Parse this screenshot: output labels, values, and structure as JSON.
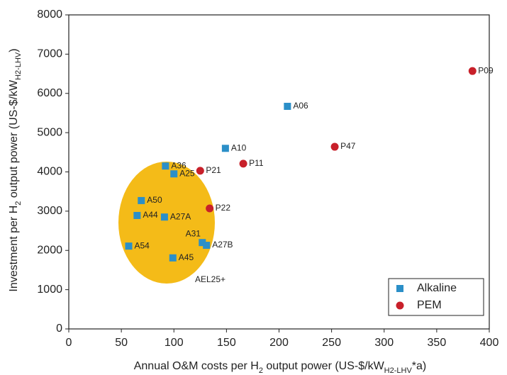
{
  "chart_data": {
    "type": "scatter",
    "xlabel": [
      "Annual O&M costs per H",
      "2",
      " output power (US-$/kW",
      "H2-LHV",
      "*a)"
    ],
    "ylabel": [
      "Investment per H",
      "2",
      " output power (US-$/kW",
      "H2-LHV",
      ")"
    ],
    "xlim": [
      0,
      400
    ],
    "xticks": [
      0,
      50,
      100,
      150,
      200,
      250,
      300,
      350,
      400
    ],
    "ylim": [
      0,
      8000
    ],
    "yticks": [
      0,
      1000,
      2000,
      3000,
      4000,
      5000,
      6000,
      7000,
      8000
    ],
    "legend": "lower right",
    "annotation": "AEL25+",
    "series": [
      {
        "name": "Alkaline",
        "color": "#2b8fc8",
        "marker": "square",
        "labels": [
          "A06",
          "A10",
          "A36",
          "A25",
          "A50",
          "A44",
          "A27A",
          "A31",
          "A27B",
          "A54",
          "A45"
        ],
        "x": [
          208,
          149,
          92,
          100,
          69,
          65,
          91,
          127,
          131,
          57,
          99
        ],
        "y": [
          5670,
          4600,
          4150,
          3950,
          3270,
          2890,
          2850,
          2200,
          2130,
          2110,
          1810
        ]
      },
      {
        "name": "PEM",
        "color": "#c8202a",
        "marker": "circle",
        "labels": [
          "P09",
          "P47",
          "P11",
          "P21",
          "P22"
        ],
        "x": [
          384,
          253,
          166,
          125,
          134
        ],
        "y": [
          6570,
          4640,
          4210,
          4030,
          3070
        ]
      }
    ]
  }
}
